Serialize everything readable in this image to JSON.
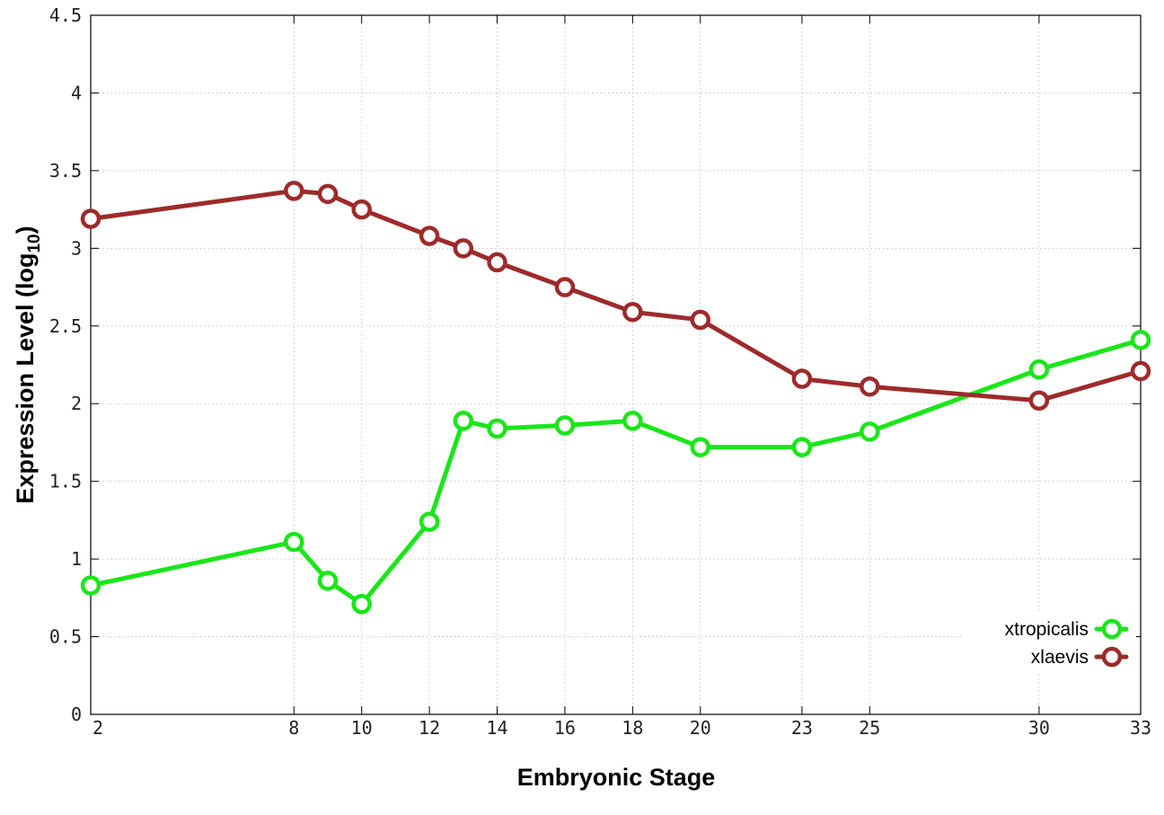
{
  "chart_data": {
    "type": "line",
    "xlabel": "Embryonic Stage",
    "ylabel_main": "Expression Level (log",
    "ylabel_sub": "10",
    "ylabel_close": ")",
    "xlim": [
      2,
      33
    ],
    "ylim": [
      0,
      4.5
    ],
    "x_ticks": [
      2,
      8,
      10,
      12,
      14,
      16,
      18,
      20,
      23,
      25,
      30,
      33
    ],
    "y_ticks": [
      0,
      0.5,
      1,
      1.5,
      2,
      2.5,
      3,
      3.5,
      4,
      4.5
    ],
    "y_tick_labels": [
      "0",
      "0.5",
      "1",
      "1.5",
      "2",
      "2.5",
      "3",
      "3.5",
      "4",
      "4.5"
    ],
    "grid": true,
    "legend_position": "bottom-right",
    "series": [
      {
        "name": "xtropicalis",
        "color": "#19e619",
        "x": [
          2,
          8,
          9,
          10,
          12,
          13,
          14,
          16,
          18,
          20,
          23,
          25,
          30,
          33
        ],
        "y": [
          0.83,
          1.11,
          0.86,
          0.71,
          1.24,
          1.89,
          1.84,
          1.86,
          1.89,
          1.72,
          1.72,
          1.82,
          2.22,
          2.41
        ]
      },
      {
        "name": "xlaevis",
        "color": "#9e2a2a",
        "x": [
          2,
          8,
          9,
          10,
          12,
          13,
          14,
          16,
          18,
          20,
          23,
          25,
          30,
          33
        ],
        "y": [
          3.19,
          3.37,
          3.35,
          3.25,
          3.08,
          3.0,
          2.91,
          2.75,
          2.59,
          2.54,
          2.16,
          2.11,
          2.02,
          2.21
        ]
      }
    ]
  }
}
